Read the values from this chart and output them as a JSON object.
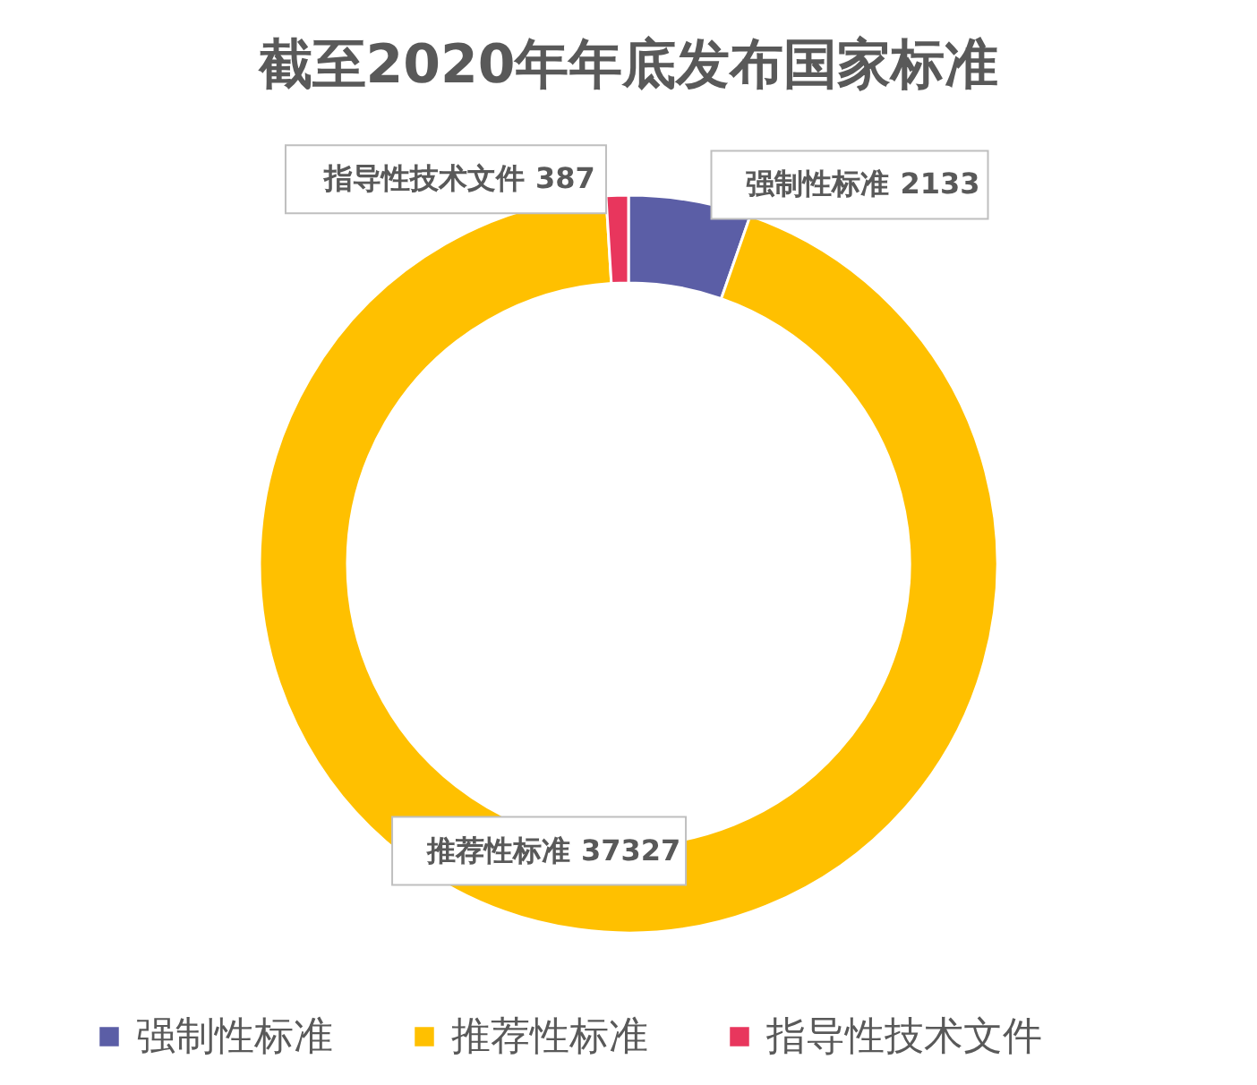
{
  "chart_data": {
    "type": "donut",
    "title": "截至2020年年底发布国家标准",
    "categories": [
      "强制性标准",
      "推荐性标准",
      "指导性技术文件"
    ],
    "values": [
      2133,
      37327,
      387
    ],
    "colors": [
      "#5b5ea6",
      "#ffc000",
      "#e8365d"
    ],
    "data_labels": true,
    "legend": "bottom"
  }
}
